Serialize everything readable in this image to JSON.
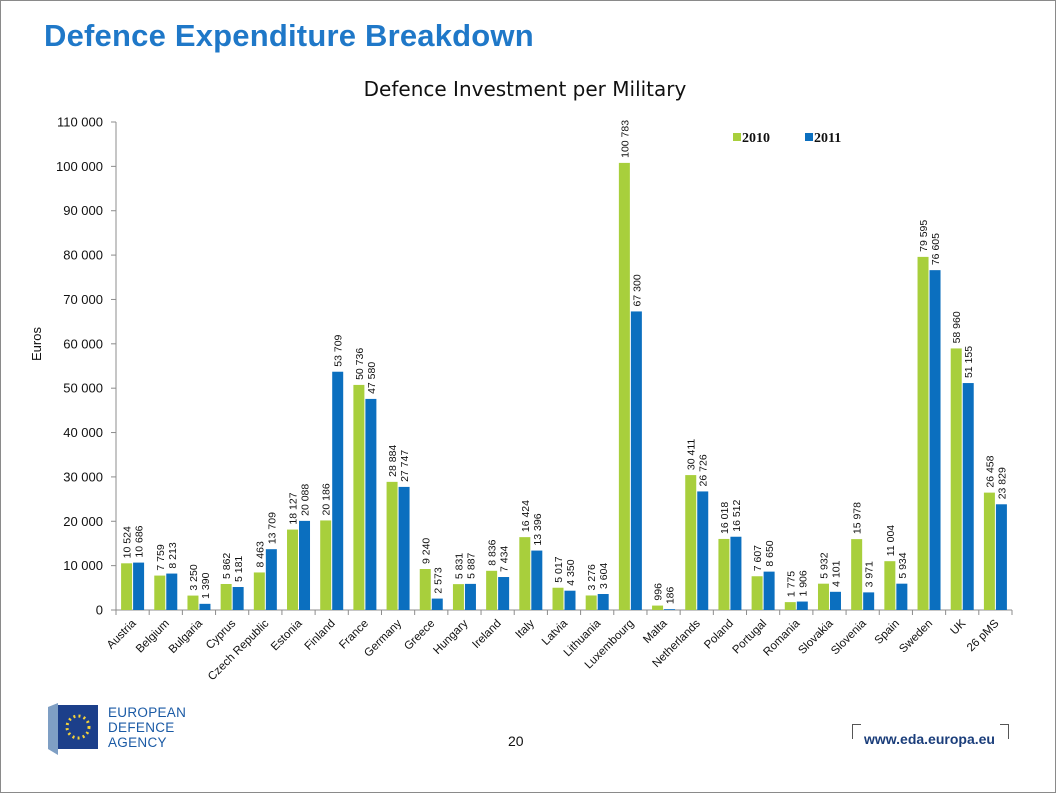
{
  "slide": {
    "title": "Defence Expenditure Breakdown",
    "page_number": "20",
    "url": "www.eda.europa.eu",
    "logo": {
      "line1": "EUROPEAN",
      "line2": "DEFENCE",
      "line3": "AGENCY",
      "icon": "eu-stars-flag-icon"
    }
  },
  "colors": {
    "title": "#1f78c8",
    "series_2010": "#a8cf3c",
    "series_2011": "#0b6fbf"
  },
  "chart_data": {
    "type": "bar",
    "title": "Defence Investment per Military",
    "xlabel": "",
    "ylabel": "Euros",
    "ylim": [
      0,
      110000
    ],
    "yticks": [
      0,
      10000,
      20000,
      30000,
      40000,
      50000,
      60000,
      70000,
      80000,
      90000,
      100000,
      110000
    ],
    "ytick_labels": [
      "0",
      "10 000",
      "20 000",
      "30 000",
      "40 000",
      "50 000",
      "60 000",
      "70 000",
      "80 000",
      "90 000",
      "100 000",
      "110 000"
    ],
    "legend_position": "top-right",
    "grid": false,
    "categories": [
      "Austria",
      "Belgium",
      "Bulgaria",
      "Cyprus",
      "Czech Republic",
      "Estonia",
      "Finland",
      "France",
      "Germany",
      "Greece",
      "Hungary",
      "Ireland",
      "Italy",
      "Latvia",
      "Lithuania",
      "Luxembourg",
      "Malta",
      "Netherlands",
      "Poland",
      "Portugal",
      "Romania",
      "Slovakia",
      "Slovenia",
      "Spain",
      "Sweden",
      "UK",
      "26 pMS"
    ],
    "series": [
      {
        "name": "2010",
        "color": "#a8cf3c",
        "values": [
          10524,
          7759,
          3250,
          5862,
          8463,
          18127,
          20186,
          50736,
          28884,
          9240,
          5831,
          8836,
          16424,
          5017,
          3276,
          100783,
          996,
          30411,
          16018,
          7607,
          1775,
          5932,
          15978,
          11004,
          79595,
          58960,
          26458
        ],
        "labels": [
          "10 524",
          "7 759",
          "3 250",
          "5 862",
          "8 463",
          "18 127",
          "20 186",
          "50 736",
          "28 884",
          "9 240",
          "5 831",
          "8 836",
          "16 424",
          "5 017",
          "3 276",
          "100 783",
          "996",
          "30 411",
          "16 018",
          "7 607",
          "1 775",
          "5 932",
          "15 978",
          "11 004",
          "79 595",
          "58 960",
          "26 458"
        ]
      },
      {
        "name": "2011",
        "color": "#0b6fbf",
        "values": [
          10686,
          8213,
          1390,
          5181,
          13709,
          20088,
          53709,
          47580,
          27747,
          2573,
          5887,
          7434,
          13396,
          4350,
          3604,
          67300,
          186,
          26726,
          16512,
          8650,
          1906,
          4101,
          3971,
          5934,
          76605,
          51155,
          23829
        ],
        "labels": [
          "10 686",
          "8 213",
          "1 390",
          "5 181",
          "13 709",
          "20 088",
          "53 709",
          "47 580",
          "27 747",
          "2 573",
          "5 887",
          "7 434",
          "13 396",
          "4 350",
          "3 604",
          "67 300",
          "186",
          "26 726",
          "16 512",
          "8 650",
          "1 906",
          "4 101",
          "3 971",
          "5 934",
          "76 605",
          "51 155",
          "23 829"
        ]
      }
    ]
  }
}
